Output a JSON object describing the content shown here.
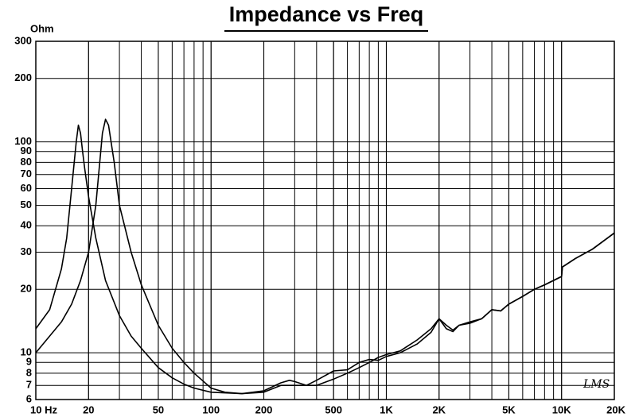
{
  "chart_data": {
    "type": "line",
    "title": "Impedance vs Freq",
    "ylabel": "Ohm",
    "watermark": "LMS",
    "xscale": "log",
    "yscale": "log",
    "grid": true,
    "xlim": [
      10,
      20000
    ],
    "ylim": [
      6,
      300
    ],
    "xticks": [
      {
        "value": 10,
        "label": "10  Hz"
      },
      20,
      50,
      100,
      200,
      500,
      {
        "value": 1000,
        "label": "1K"
      },
      {
        "value": 2000,
        "label": "2K"
      },
      {
        "value": 5000,
        "label": "5K"
      },
      {
        "value": 10000,
        "label": "10K"
      },
      {
        "value": 20000,
        "label": "20K"
      }
    ],
    "yticks": [
      6,
      7,
      8,
      9,
      10,
      20,
      30,
      40,
      50,
      60,
      70,
      80,
      90,
      100,
      200,
      300
    ],
    "series": [
      {
        "color": "#000000",
        "x": [
          10,
          12,
          14,
          15,
          16,
          17,
          17.5,
          18,
          18.5,
          19,
          20,
          22,
          25,
          30,
          35,
          40,
          50,
          60,
          70,
          80,
          100,
          150,
          200,
          250,
          300,
          350,
          400,
          500,
          600,
          700,
          800,
          900,
          1000,
          1200,
          1500,
          1800,
          2000,
          2200,
          2400,
          2600,
          3000,
          3500,
          4000,
          4500,
          5000,
          6000,
          7000,
          8000,
          10000,
          10100,
          12000,
          15000,
          20000
        ],
        "values": [
          13,
          16,
          25,
          35,
          60,
          100,
          120,
          110,
          90,
          75,
          55,
          35,
          22,
          15,
          12,
          10.5,
          8.5,
          7.6,
          7.1,
          6.8,
          6.5,
          6.4,
          6.5,
          7.0,
          7.0,
          7.0,
          7.4,
          8.2,
          8.3,
          9,
          9.3,
          9.2,
          9.6,
          10,
          11,
          12.5,
          14.5,
          13.5,
          12.8,
          13.5,
          13.8,
          14.5,
          16,
          15.8,
          17,
          18.5,
          20,
          21,
          23,
          25.5,
          28,
          31,
          37
        ]
      },
      {
        "color": "#000000",
        "x": [
          10,
          12,
          14,
          16,
          18,
          20,
          22,
          24,
          25,
          26,
          28,
          30,
          35,
          40,
          50,
          60,
          70,
          80,
          100,
          120,
          150,
          200,
          250,
          280,
          300,
          350,
          400,
          500,
          600,
          700,
          800,
          900,
          1000,
          1200,
          1500,
          1800,
          2000,
          2200,
          2400,
          2600,
          3000,
          3500,
          4000,
          4500,
          5000,
          6000,
          7000,
          8000,
          10000,
          10100,
          12000,
          15000,
          20000
        ],
        "values": [
          10,
          12,
          14,
          17,
          22,
          30,
          50,
          110,
          128,
          120,
          80,
          50,
          30,
          21,
          13.5,
          10.5,
          9,
          8,
          6.8,
          6.5,
          6.4,
          6.6,
          7.2,
          7.4,
          7.3,
          7.0,
          7.0,
          7.5,
          8,
          8.5,
          9,
          9.5,
          9.8,
          10.2,
          11.5,
          13,
          14.5,
          13,
          12.6,
          13.5,
          14,
          14.5,
          16,
          15.8,
          17,
          18.5,
          20,
          21,
          23,
          25.5,
          28,
          31,
          37
        ]
      }
    ]
  }
}
